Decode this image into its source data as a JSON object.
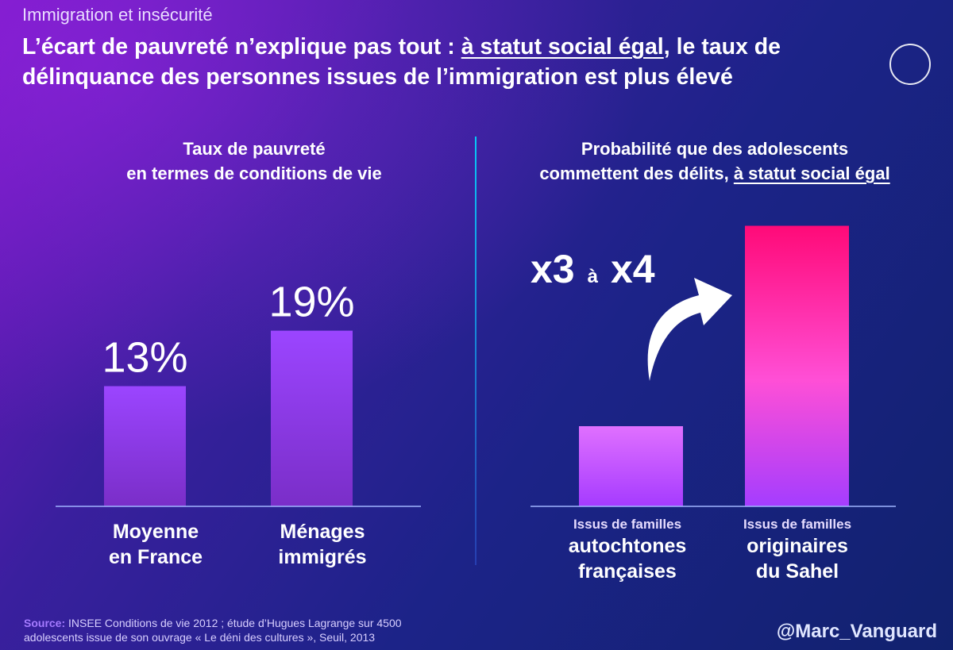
{
  "header": {
    "kicker": "Immigration et insécurité",
    "headline_part1": "L’écart de pauvreté n’explique pas tout : ",
    "headline_underlined": "à statut social égal",
    "headline_part2": ", le taux de délinquance des personnes issues de l’immigration est plus élevé",
    "flag_colors": [
      "#1f3fd6",
      "#ffffff",
      "#e3242b"
    ]
  },
  "chart_data": [
    {
      "type": "bar",
      "title_line1": "Taux de pauvreté",
      "title_line2": "en termes de conditions de vie",
      "categories": [
        {
          "line1": "Moyenne",
          "line2": "en France"
        },
        {
          "line1": "Ménages",
          "line2": "immigrés"
        }
      ],
      "values": [
        13,
        19
      ],
      "value_labels": [
        "13%",
        "19%"
      ],
      "colors": [
        "#9b45ff",
        "#9b45ff"
      ]
    },
    {
      "type": "bar",
      "title_line1": "Probabilité que des adolescents",
      "title_line2_plain": "commettent des délits, ",
      "title_line2_underlined": "à statut social égal",
      "categories": [
        {
          "small": "Issus de familles",
          "line1": "autochtones",
          "line2": "françaises"
        },
        {
          "small": "Issus de familles",
          "line1": "originaires",
          "line2": "du Sahel"
        }
      ],
      "values": [
        1,
        3.5
      ],
      "annotation": {
        "left": "x3",
        "middle": "à",
        "right": "x4"
      },
      "colors": [
        "#c850ff",
        "#ff0a78"
      ]
    }
  ],
  "footer": {
    "source_label": "Source:",
    "source_line1": " INSEE Conditions de vie 2012 ; étude d’Hugues Lagrange sur 4500",
    "source_line2": "adolescents issue de son ouvrage « Le déni des cultures », Seuil, 2013",
    "handle": "@Marc_Vanguard"
  }
}
